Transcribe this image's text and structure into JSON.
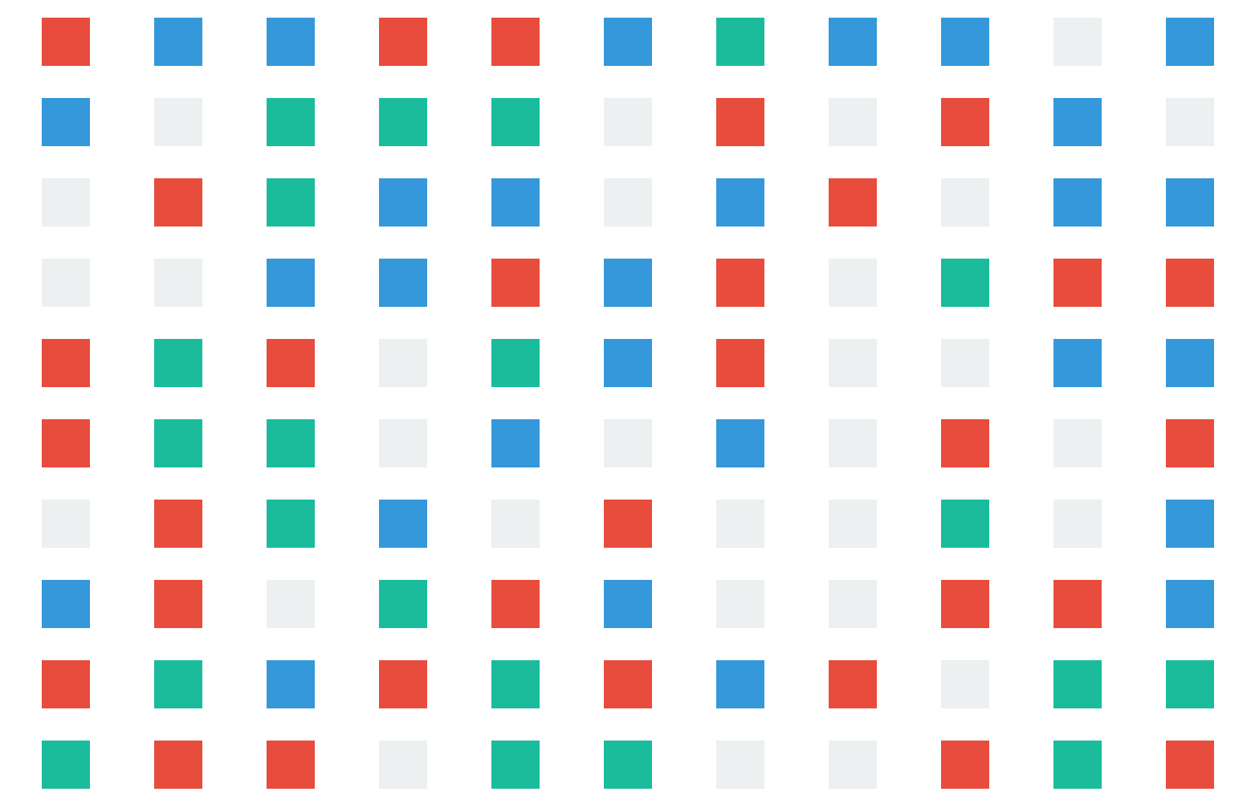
{
  "palette": {
    "R": "#e74c3c",
    "B": "#3498db",
    "G": "#1abc9c",
    "W": "#ecf0f1"
  },
  "color_names": {
    "R": "red",
    "B": "blue",
    "G": "green",
    "W": "empty"
  },
  "grid": {
    "rows": 10,
    "cols": 11,
    "cells": [
      [
        "R",
        "B",
        "B",
        "R",
        "R",
        "B",
        "G",
        "B",
        "B",
        "W",
        "B"
      ],
      [
        "B",
        "W",
        "G",
        "G",
        "G",
        "W",
        "R",
        "W",
        "R",
        "B",
        "W"
      ],
      [
        "W",
        "R",
        "G",
        "B",
        "B",
        "W",
        "B",
        "R",
        "W",
        "B",
        "B"
      ],
      [
        "W",
        "W",
        "B",
        "B",
        "R",
        "B",
        "R",
        "W",
        "G",
        "R",
        "R"
      ],
      [
        "R",
        "G",
        "R",
        "W",
        "G",
        "B",
        "R",
        "W",
        "W",
        "B",
        "B"
      ],
      [
        "R",
        "G",
        "G",
        "W",
        "B",
        "W",
        "B",
        "W",
        "R",
        "W",
        "R"
      ],
      [
        "W",
        "R",
        "G",
        "B",
        "W",
        "R",
        "W",
        "W",
        "G",
        "W",
        "B"
      ],
      [
        "B",
        "R",
        "W",
        "G",
        "R",
        "B",
        "W",
        "W",
        "R",
        "R",
        "B"
      ],
      [
        "R",
        "G",
        "B",
        "R",
        "G",
        "R",
        "B",
        "R",
        "W",
        "G",
        "G"
      ],
      [
        "G",
        "R",
        "R",
        "W",
        "G",
        "G",
        "W",
        "W",
        "R",
        "G",
        "R"
      ]
    ]
  }
}
